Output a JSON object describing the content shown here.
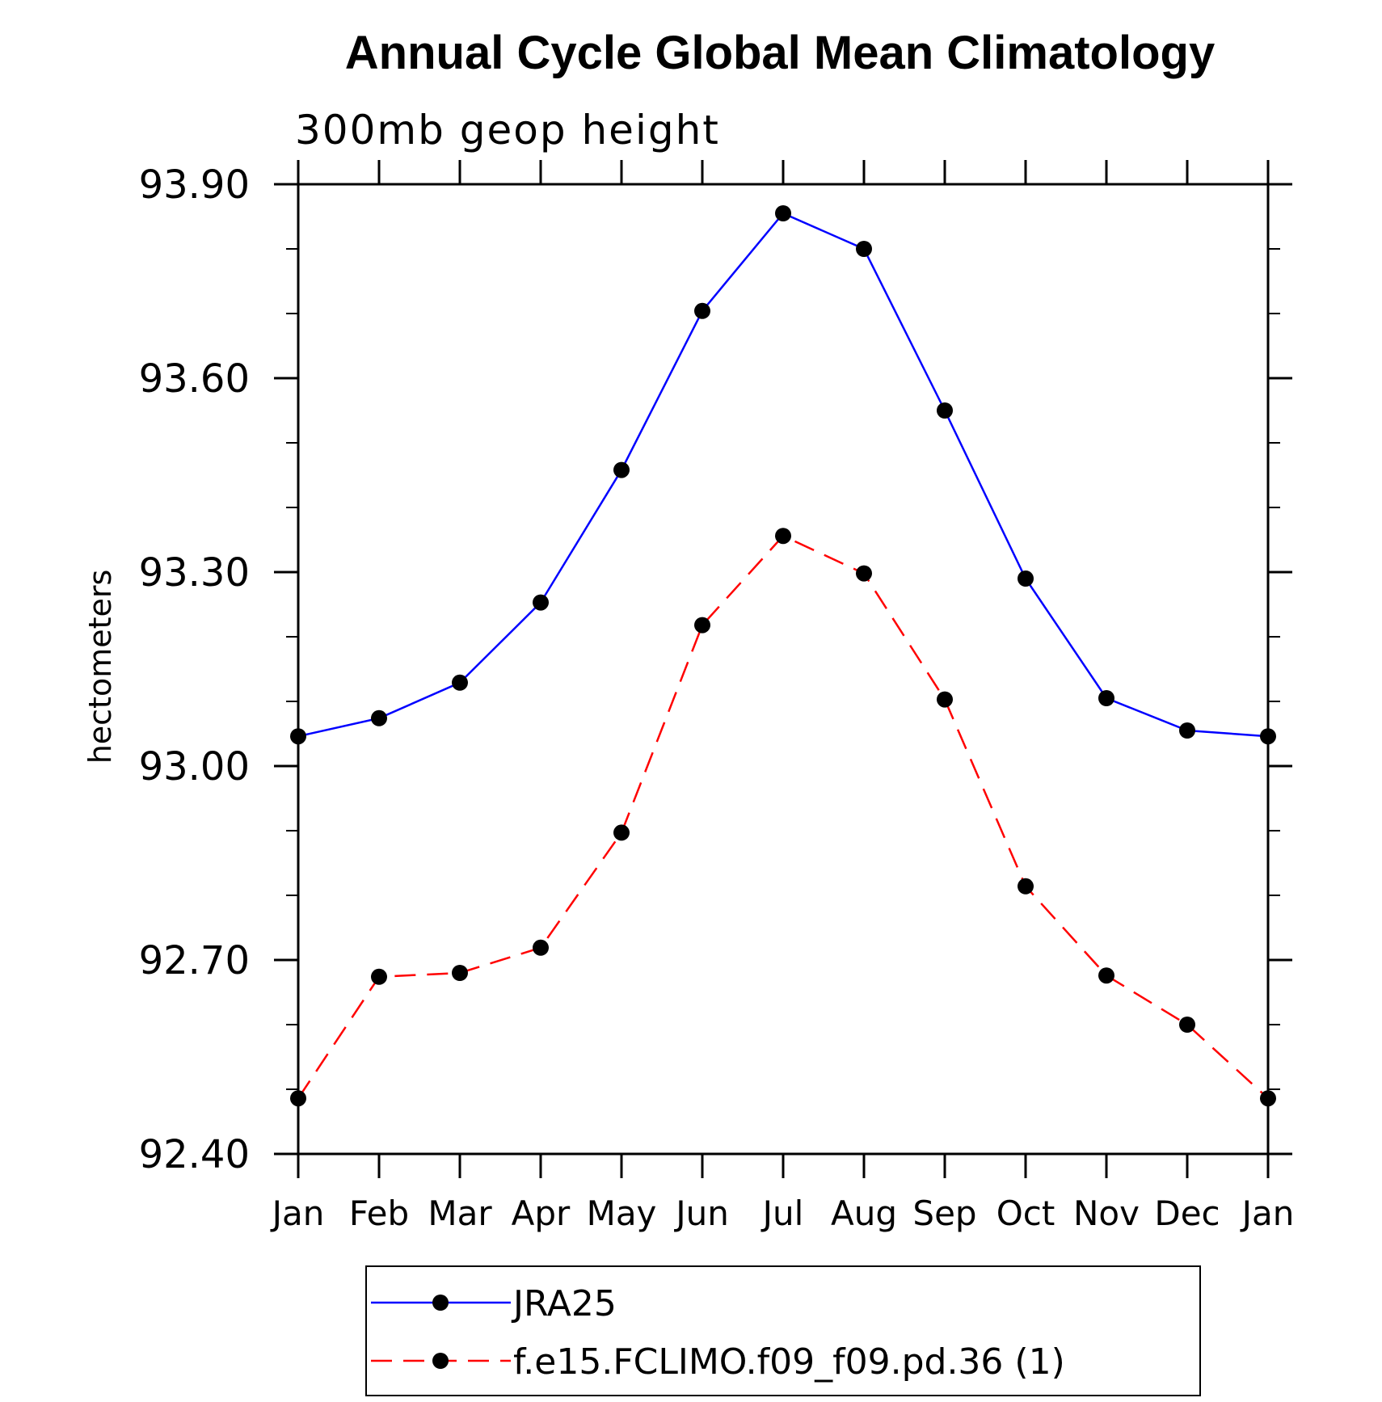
{
  "chart_data": {
    "type": "line",
    "title": "Annual Cycle Global Mean Climatology",
    "subtitle": "300mb geop height",
    "xlabel": "",
    "ylabel": "hectometers",
    "categories": [
      "Jan",
      "Feb",
      "Mar",
      "Apr",
      "May",
      "Jun",
      "Jul",
      "Aug",
      "Sep",
      "Oct",
      "Nov",
      "Dec",
      "Jan"
    ],
    "ylim": [
      92.4,
      93.9
    ],
    "yticks": [
      "92.40",
      "92.70",
      "93.00",
      "93.30",
      "93.60",
      "93.90"
    ],
    "ytick_values": [
      92.4,
      92.7,
      93.0,
      93.3,
      93.6,
      93.9
    ],
    "yminor_step": 0.1,
    "series": [
      {
        "name": "JRA25",
        "color": "#0000ff",
        "dash": "solid",
        "marker": "filled-circle",
        "values": [
          93.046,
          93.074,
          93.129,
          93.253,
          93.458,
          93.704,
          93.855,
          93.8,
          93.55,
          93.29,
          93.105,
          93.055,
          93.046
        ]
      },
      {
        "name": "f.e15.FCLIMO.f09_f09.pd.36 (1)",
        "color": "#ff0000",
        "dash": "dashed",
        "marker": "filled-circle",
        "values": [
          92.486,
          92.674,
          92.68,
          92.719,
          92.897,
          93.218,
          93.356,
          93.298,
          93.103,
          92.814,
          92.676,
          92.6,
          92.486
        ]
      }
    ]
  }
}
